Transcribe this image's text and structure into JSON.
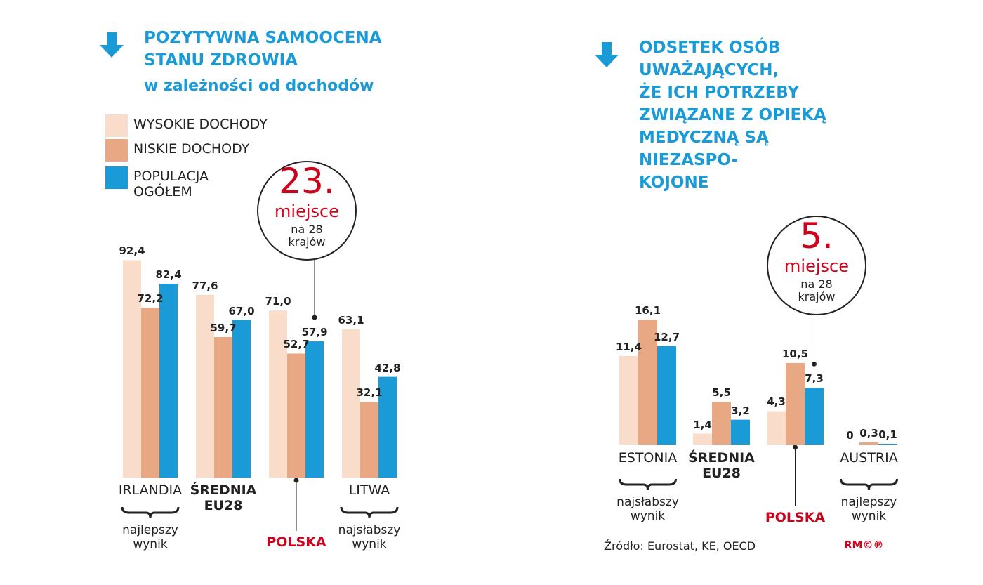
{
  "chart_data": [
    {
      "type": "bar",
      "title": "POZYTYWNA SAMOOCENA\nSTANU ZDROWIA",
      "subtitle": "w zależności od dochodów",
      "categories": [
        "IRLANDIA",
        "ŚREDNIA EU28",
        "POLSKA",
        "LITWA"
      ],
      "category_colors": [
        "#222222",
        "#222222",
        "#d0021b",
        "#222222"
      ],
      "bold_categories": [
        false,
        true,
        true,
        false
      ],
      "category_notes": [
        "najlepszy\nwynik",
        null,
        null,
        "najsłabszy\nwynik"
      ],
      "series": [
        {
          "name": "WYSOKIE DOCHODY",
          "color": "#f9dcc9",
          "values": [
            92.4,
            77.6,
            71.0,
            63.1
          ],
          "value_labels": [
            "92,4",
            "77,6",
            "71,0",
            "63,1"
          ]
        },
        {
          "name": "NISKIE DOCHODY",
          "color": "#e8a883",
          "values": [
            72.2,
            59.7,
            52.7,
            32.1
          ],
          "value_labels": [
            "72,2",
            "59,7",
            "52,7",
            "32,1"
          ]
        },
        {
          "name": "POPULACJA\nOGÓŁEM",
          "color": "#1a9ad6",
          "values": [
            82.4,
            67.0,
            57.9,
            42.8
          ],
          "value_labels": [
            "82,4",
            "67,0",
            "57,9",
            "42,8"
          ]
        }
      ],
      "ylim": [
        0,
        100
      ],
      "legend": true,
      "rank": {
        "number": "23.",
        "label": "miejsce",
        "note": "na 28\nkrajów"
      }
    },
    {
      "type": "bar",
      "title": "ODSETEK OSÓB\nUWAŻAJĄCYCH,\nŻE ICH POTRZEBY\nZWIĄZANE Z OPIEKĄ\nMEDYCZNĄ SĄ\nNIEZASPO-\nKOJONE",
      "categories": [
        "ESTONIA",
        "ŚREDNIA EU28",
        "POLSKA",
        "AUSTRIA"
      ],
      "category_colors": [
        "#222222",
        "#222222",
        "#d0021b",
        "#222222"
      ],
      "bold_categories": [
        false,
        true,
        true,
        false
      ],
      "category_notes": [
        "najsłabszy\nwynik",
        null,
        null,
        "najlepszy\nwynik"
      ],
      "series": [
        {
          "color": "#f9dcc9",
          "values": [
            11.4,
            1.4,
            4.3,
            0
          ],
          "value_labels": [
            "11,4",
            "1,4",
            "4,3",
            "0"
          ]
        },
        {
          "color": "#e8a883",
          "values": [
            16.1,
            5.5,
            10.5,
            0.3
          ],
          "value_labels": [
            "16,1",
            "5,5",
            "10,5",
            "0,3"
          ]
        },
        {
          "color": "#1a9ad6",
          "values": [
            12.7,
            3.2,
            7.3,
            0.1
          ],
          "value_labels": [
            "12,7",
            "3,2",
            "7,3",
            "0,1"
          ]
        }
      ],
      "ylim": [
        0,
        20
      ],
      "legend": false,
      "rank": {
        "number": "5.",
        "label": "miejsce",
        "note": "na 28\nkrajów"
      },
      "source": "Źródło: Eurostat, KE, OECD",
      "logo": "RM©℗"
    }
  ]
}
